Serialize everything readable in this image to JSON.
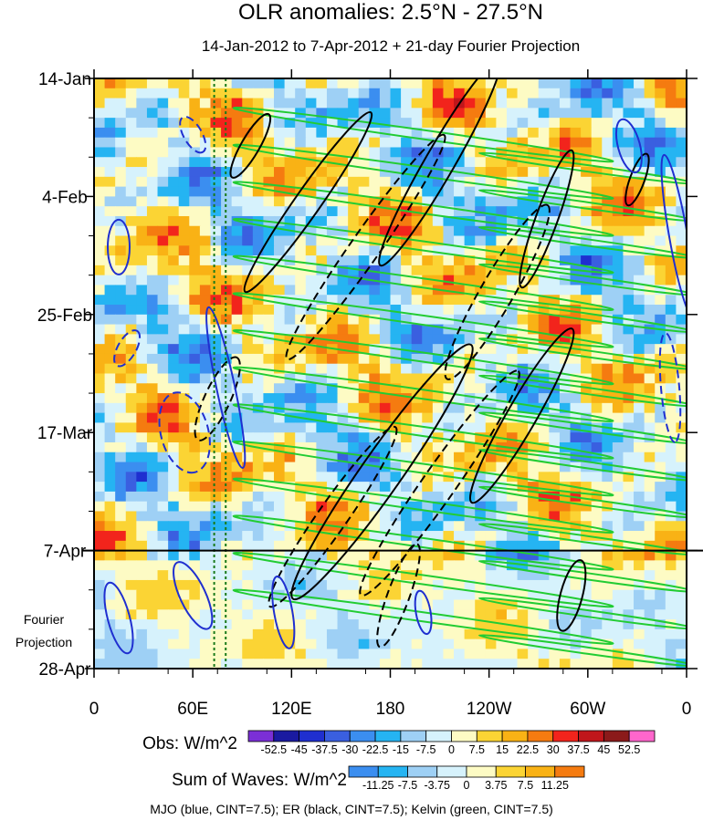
{
  "chart_data": {
    "type": "heatmap",
    "title": "OLR anomalies: 2.5°N - 27.5°N",
    "subtitle": "14-Jan-2012 to 7-Apr-2012 + 21-day Fourier Projection",
    "x_axis": {
      "ticks": [
        "0",
        "60E",
        "120E",
        "180",
        "120W",
        "60W",
        "0"
      ],
      "tick_values": [
        0,
        60,
        120,
        180,
        240,
        300,
        360
      ],
      "xlim": [
        0,
        360
      ]
    },
    "y_axis": {
      "ticks": [
        "14-Jan",
        "4-Feb",
        "25-Feb",
        "17-Mar",
        "7-Apr",
        "28-Apr"
      ],
      "tick_days": [
        0,
        21,
        42,
        63,
        84,
        105
      ],
      "ylim": [
        0,
        105
      ],
      "reversed": true
    },
    "projection_label": [
      "Fourier",
      "Projection"
    ],
    "projection_start_day": 84,
    "obs_colorbar": {
      "label": "Obs: W/m^2",
      "levels": [
        "-52.5",
        "-45",
        "-37.5",
        "-30",
        "-22.5",
        "-15",
        "-7.5",
        "0",
        "7.5",
        "15",
        "22.5",
        "30",
        "37.5",
        "45",
        "52.5"
      ],
      "colors": [
        "#7b2fd6",
        "#1a1aa0",
        "#1f2fd0",
        "#3a5fe0",
        "#3b8ef0",
        "#25b4f2",
        "#9ed0f5",
        "#d6f2fc",
        "#fdfbc4",
        "#fbd434",
        "#f9b215",
        "#f57b10",
        "#f2241c",
        "#c0161b",
        "#8b1a1a",
        "#ff66cc"
      ]
    },
    "waves_colorbar": {
      "label": "Sum of Waves: W/m^2",
      "levels": [
        "-11.25",
        "-7.5",
        "-3.75",
        "0",
        "3.75",
        "7.5",
        "11.25"
      ],
      "colors": [
        "#3b8ef0",
        "#25b4f2",
        "#9ed0f5",
        "#d6f2fc",
        "#fdfbc4",
        "#fbd434",
        "#f9b215",
        "#f57b10"
      ]
    },
    "contour_legend": "MJO (blue, CINT=7.5); ER (black, CINT=7.5); Kelvin (green, CINT=7.5)",
    "contour_colors": {
      "mjo": "#1f2fd0",
      "er": "#000000",
      "kelvin": "#22cc33"
    },
    "reference_lines_lon": [
      73,
      80
    ],
    "reference_line_color": "#1a7a1a"
  }
}
